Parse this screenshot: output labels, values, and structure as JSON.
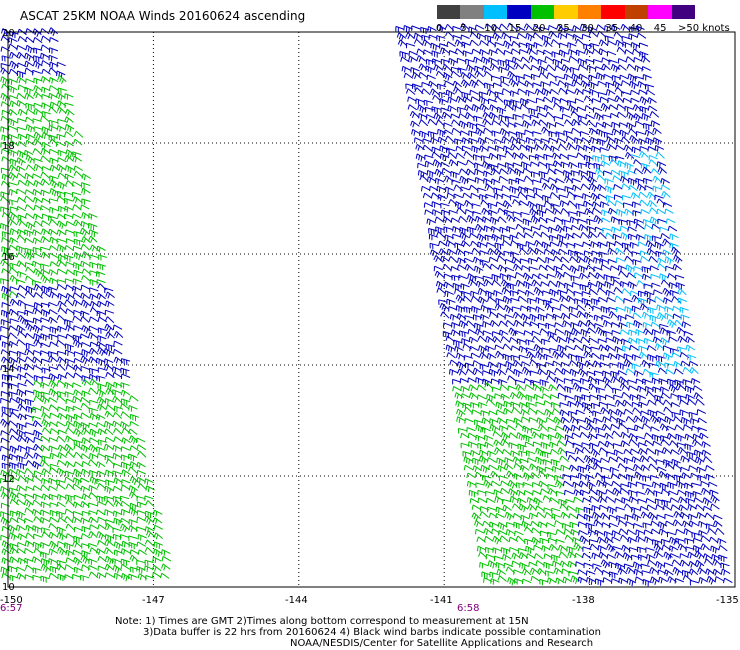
{
  "title": "ASCAT 25KM NOAA Winds 20160624 ascending",
  "legend": {
    "labels": [
      "0",
      "5",
      "10",
      "15",
      "20",
      "25",
      "30",
      "35",
      "40",
      "45",
      ">50 knots"
    ],
    "colors": [
      "#404040",
      "#808080",
      "#00bfff",
      "#0000c0",
      "#00c000",
      "#ffcc00",
      "#ff8000",
      "#ff0000",
      "#c04000",
      "#ff00ff",
      "#400080"
    ]
  },
  "map": {
    "lon_ticks": [
      "-150",
      "-147",
      "-144",
      "-141",
      "-138",
      "-135"
    ],
    "lat_ticks": [
      "20",
      "18",
      "16",
      "14",
      "12",
      "10"
    ],
    "lon_range": [
      -150,
      -135
    ],
    "lat_range": [
      10,
      20
    ],
    "grid_lines": "dotted",
    "swaths": [
      {
        "name": "swath-west",
        "time": "6:57",
        "colors": {
          "blue": "#0000c0",
          "green": "#00c000"
        }
      },
      {
        "name": "swath-east",
        "time": "6:58",
        "colors": {
          "blue": "#0000c0",
          "green": "#00c000",
          "light": "#00bfff"
        }
      }
    ]
  },
  "notes": {
    "line1": "Note: 1) Times are GMT 2)Times along bottom correspond to measurement at 15N",
    "line2": "3)Data buffer is 22 hrs from 20160624 4) Black wind barbs indicate possible contamination",
    "line3": "NOAA/NESDIS/Center for Satellite Applications and Research"
  }
}
